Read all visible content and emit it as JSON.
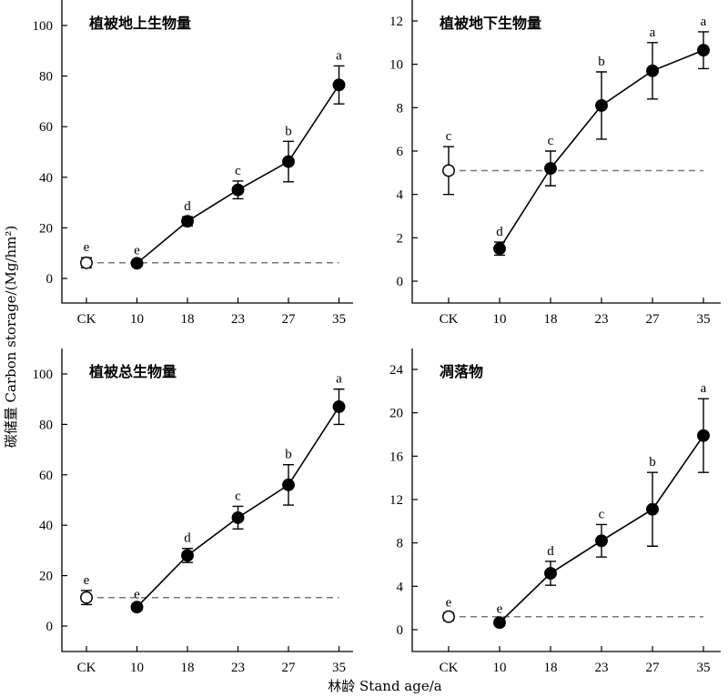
{
  "figure": {
    "ylabel": "碳储量 Carbon storage/(Mg/hm²)",
    "xlabel": "林龄 Stand age/a"
  },
  "chart_data": [
    {
      "type": "scatter",
      "title": "植被地上生物量",
      "categories": [
        "CK",
        "10",
        "18",
        "23",
        "27",
        "35"
      ],
      "values": [
        6.2,
        6.0,
        22.6,
        35.0,
        46.2,
        76.5
      ],
      "errors": [
        2.0,
        1.0,
        1.8,
        3.5,
        8.0,
        7.5
      ],
      "sig": [
        "e",
        "e",
        "d",
        "c",
        "b",
        "a"
      ],
      "control_index": 0,
      "yticks": [
        0,
        20,
        40,
        60,
        80,
        100
      ],
      "ylim": [
        -10,
        108
      ]
    },
    {
      "type": "scatter",
      "title": "植被地下生物量",
      "categories": [
        "CK",
        "10",
        "18",
        "23",
        "27",
        "35"
      ],
      "values": [
        5.1,
        1.5,
        5.2,
        8.1,
        9.7,
        10.65
      ],
      "errors": [
        1.1,
        0.3,
        0.8,
        1.55,
        1.3,
        0.85
      ],
      "sig": [
        "c",
        "d",
        "c",
        "b",
        "a",
        "a"
      ],
      "control_index": 0,
      "yticks": [
        0,
        2,
        4,
        6,
        8,
        10,
        12
      ],
      "ylim": [
        -1.2,
        13
      ]
    },
    {
      "type": "scatter",
      "title": "植被总生物量",
      "categories": [
        "CK",
        "10",
        "18",
        "23",
        "27",
        "35"
      ],
      "values": [
        11.3,
        7.5,
        28.0,
        43.0,
        56.0,
        87.0
      ],
      "errors": [
        2.8,
        1.0,
        2.8,
        4.5,
        8.0,
        7.0
      ],
      "sig": [
        "e",
        "e",
        "d",
        "c",
        "b",
        "a"
      ],
      "control_index": 0,
      "yticks": [
        0,
        20,
        40,
        60,
        80,
        100
      ],
      "ylim": [
        -10,
        108
      ]
    },
    {
      "type": "scatter",
      "title": "凋落物",
      "categories": [
        "CK",
        "10",
        "18",
        "23",
        "27",
        "35"
      ],
      "values": [
        1.2,
        0.65,
        5.2,
        8.2,
        11.1,
        17.9
      ],
      "errors": [
        0.35,
        0.3,
        1.1,
        1.5,
        3.4,
        3.4
      ],
      "sig": [
        "e",
        "e",
        "d",
        "c",
        "b",
        "a"
      ],
      "control_index": 0,
      "yticks": [
        0,
        4,
        8,
        12,
        16,
        20,
        24
      ],
      "ylim": [
        -2.2,
        26
      ]
    }
  ]
}
